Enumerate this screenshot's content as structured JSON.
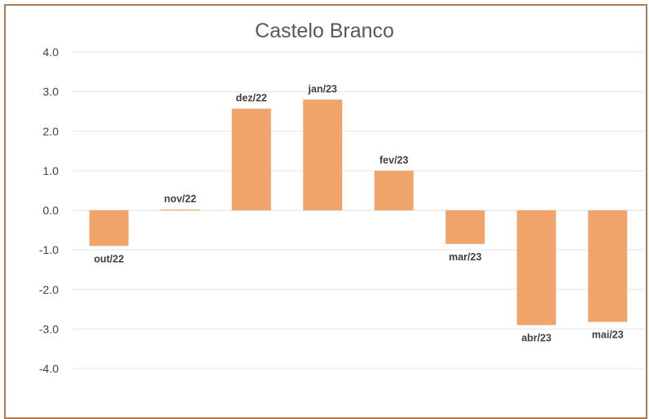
{
  "chart_data": {
    "type": "bar",
    "title": "Castelo Branco",
    "xlabel": "",
    "ylabel": "",
    "categories": [
      "out/22",
      "nov/22",
      "dez/22",
      "jan/23",
      "fev/23",
      "mar/23",
      "abr/23",
      "mai/23"
    ],
    "values": [
      -0.9,
      0.02,
      2.57,
      2.8,
      1.0,
      -0.85,
      -2.9,
      -2.82
    ],
    "ylim": [
      -4.0,
      4.0
    ],
    "yticks": [
      "4.0",
      "3.0",
      "2.0",
      "1.0",
      "0.0",
      "-1.0",
      "-2.0",
      "-3.0",
      "-4.0"
    ],
    "grid": true,
    "legend": "none",
    "bar_color": "#f0a46a",
    "data_labels": "category names"
  }
}
